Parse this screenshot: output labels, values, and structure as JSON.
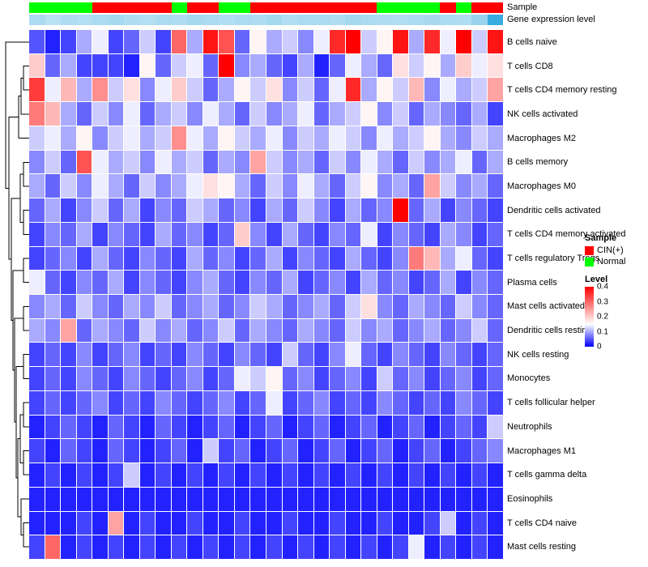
{
  "chart_data": {
    "type": "heatmap",
    "title": "",
    "value_min": 0,
    "value_max": 0.4,
    "colormap": {
      "low": "#0000FF",
      "mid": "#FFFFFF",
      "high": "#FF0000",
      "mid_value": 0.15
    },
    "expression_colormap": {
      "low": "#DFF1FA",
      "high": "#2FA8DD"
    },
    "annotations": {
      "sample_label": "Sample",
      "expression_label": "Gene expression level",
      "sample_values": [
        "Normal",
        "Normal",
        "Normal",
        "Normal",
        "CIN(+)",
        "CIN(+)",
        "CIN(+)",
        "CIN(+)",
        "CIN(+)",
        "Normal",
        "CIN(+)",
        "CIN(+)",
        "Normal",
        "Normal",
        "CIN(+)",
        "CIN(+)",
        "CIN(+)",
        "CIN(+)",
        "CIN(+)",
        "CIN(+)",
        "CIN(+)",
        "CIN(+)",
        "Normal",
        "Normal",
        "Normal",
        "Normal",
        "CIN(+)",
        "Normal",
        "CIN(+)",
        "CIN(+)"
      ],
      "expression_values": [
        0.3,
        0.22,
        0.28,
        0.25,
        0.3,
        0.33,
        0.27,
        0.25,
        0.3,
        0.28,
        0.33,
        0.3,
        0.26,
        0.3,
        0.28,
        0.33,
        0.26,
        0.3,
        0.3,
        0.27,
        0.33,
        0.3,
        0.28,
        0.26,
        0.3,
        0.32,
        0.3,
        0.27,
        0.4,
        0.95
      ]
    },
    "rows": [
      "B cells naive",
      "T cells CD8",
      "T cells CD4 memory resting",
      "NK cells activated",
      "Macrophages M2",
      "B cells memory",
      "Macrophages M0",
      "Dendritic cells activated",
      "T cells CD4 memory activated",
      "T cells regulatory Tregs",
      "Plasma cells",
      "Mast cells activated",
      "Dendritic cells resting",
      "NK cells resting",
      "Monocytes",
      "T cells follicular helper",
      "Neutrophils",
      "Macrophages M1",
      "T cells gamma delta",
      "Eosinophils",
      "T cells CD4 naive",
      "Mast cells resting"
    ],
    "values": [
      [
        0.05,
        0.02,
        0.04,
        0.1,
        0.14,
        0.04,
        0.06,
        0.12,
        0.04,
        0.3,
        0.1,
        0.38,
        0.32,
        0.06,
        0.16,
        0.1,
        0.12,
        0.08,
        0.14,
        0.36,
        0.4,
        0.12,
        0.16,
        0.38,
        0.1,
        0.36,
        0.14,
        0.4,
        0.12,
        0.38
      ],
      [
        0.2,
        0.06,
        0.1,
        0.04,
        0.04,
        0.04,
        0.02,
        0.16,
        0.06,
        0.12,
        0.14,
        0.06,
        0.4,
        0.08,
        0.1,
        0.06,
        0.04,
        0.1,
        0.02,
        0.06,
        0.14,
        0.1,
        0.06,
        0.18,
        0.12,
        0.16,
        0.1,
        0.2,
        0.14,
        0.18
      ],
      [
        0.34,
        0.14,
        0.22,
        0.1,
        0.26,
        0.12,
        0.18,
        0.08,
        0.14,
        0.2,
        0.12,
        0.06,
        0.1,
        0.16,
        0.12,
        0.18,
        0.08,
        0.12,
        0.06,
        0.14,
        0.36,
        0.1,
        0.16,
        0.12,
        0.22,
        0.08,
        0.14,
        0.1,
        0.12,
        0.24
      ],
      [
        0.28,
        0.22,
        0.1,
        0.06,
        0.12,
        0.08,
        0.14,
        0.06,
        0.1,
        0.12,
        0.08,
        0.14,
        0.1,
        0.06,
        0.12,
        0.08,
        0.1,
        0.14,
        0.06,
        0.1,
        0.12,
        0.16,
        0.08,
        0.12,
        0.06,
        0.1,
        0.08,
        0.06,
        0.1,
        0.04
      ],
      [
        0.12,
        0.14,
        0.1,
        0.16,
        0.08,
        0.12,
        0.14,
        0.1,
        0.12,
        0.26,
        0.14,
        0.1,
        0.16,
        0.12,
        0.1,
        0.14,
        0.08,
        0.12,
        0.1,
        0.14,
        0.12,
        0.08,
        0.14,
        0.1,
        0.12,
        0.16,
        0.1,
        0.08,
        0.12,
        0.1
      ],
      [
        0.08,
        0.12,
        0.06,
        0.32,
        0.14,
        0.1,
        0.12,
        0.08,
        0.14,
        0.1,
        0.12,
        0.06,
        0.1,
        0.08,
        0.24,
        0.12,
        0.08,
        0.1,
        0.06,
        0.12,
        0.08,
        0.14,
        0.1,
        0.06,
        0.12,
        0.08,
        0.1,
        0.14,
        0.06,
        0.1
      ],
      [
        0.1,
        0.06,
        0.12,
        0.08,
        0.14,
        0.1,
        0.06,
        0.12,
        0.08,
        0.1,
        0.14,
        0.18,
        0.16,
        0.1,
        0.06,
        0.12,
        0.08,
        0.14,
        0.1,
        0.06,
        0.12,
        0.16,
        0.08,
        0.1,
        0.06,
        0.24,
        0.12,
        0.08,
        0.1,
        0.06
      ],
      [
        0.06,
        0.1,
        0.04,
        0.08,
        0.12,
        0.06,
        0.1,
        0.04,
        0.08,
        0.06,
        0.12,
        0.1,
        0.06,
        0.08,
        0.04,
        0.1,
        0.06,
        0.12,
        0.08,
        0.04,
        0.1,
        0.06,
        0.08,
        0.4,
        0.06,
        0.1,
        0.04,
        0.08,
        0.06,
        0.04
      ],
      [
        0.04,
        0.08,
        0.06,
        0.1,
        0.04,
        0.08,
        0.06,
        0.04,
        0.1,
        0.06,
        0.08,
        0.04,
        0.06,
        0.2,
        0.08,
        0.04,
        0.1,
        0.06,
        0.04,
        0.08,
        0.06,
        0.14,
        0.04,
        0.08,
        0.06,
        0.04,
        0.1,
        0.08,
        0.04,
        0.06
      ],
      [
        0.04,
        0.06,
        0.08,
        0.04,
        0.1,
        0.06,
        0.04,
        0.08,
        0.06,
        0.04,
        0.1,
        0.06,
        0.08,
        0.04,
        0.06,
        0.1,
        0.04,
        0.08,
        0.06,
        0.04,
        0.1,
        0.06,
        0.04,
        0.08,
        0.28,
        0.22,
        0.1,
        0.14,
        0.06,
        0.04
      ],
      [
        0.14,
        0.06,
        0.04,
        0.08,
        0.06,
        0.1,
        0.04,
        0.08,
        0.06,
        0.04,
        0.08,
        0.1,
        0.06,
        0.04,
        0.08,
        0.06,
        0.1,
        0.04,
        0.06,
        0.08,
        0.04,
        0.1,
        0.06,
        0.08,
        0.04,
        0.06,
        0.1,
        0.04,
        0.08,
        0.06
      ],
      [
        0.08,
        0.1,
        0.06,
        0.12,
        0.08,
        0.06,
        0.1,
        0.08,
        0.12,
        0.06,
        0.08,
        0.1,
        0.06,
        0.08,
        0.12,
        0.1,
        0.06,
        0.08,
        0.1,
        0.06,
        0.12,
        0.18,
        0.08,
        0.06,
        0.1,
        0.08,
        0.06,
        0.12,
        0.08,
        0.06
      ],
      [
        0.1,
        0.08,
        0.24,
        0.06,
        0.1,
        0.08,
        0.06,
        0.12,
        0.08,
        0.1,
        0.06,
        0.08,
        0.12,
        0.06,
        0.1,
        0.08,
        0.06,
        0.1,
        0.08,
        0.06,
        0.12,
        0.08,
        0.1,
        0.06,
        0.08,
        0.1,
        0.06,
        0.08,
        0.12,
        0.06
      ],
      [
        0.04,
        0.06,
        0.04,
        0.08,
        0.04,
        0.06,
        0.08,
        0.04,
        0.06,
        0.04,
        0.08,
        0.06,
        0.04,
        0.08,
        0.06,
        0.04,
        0.12,
        0.06,
        0.04,
        0.08,
        0.14,
        0.06,
        0.04,
        0.08,
        0.06,
        0.04,
        0.08,
        0.06,
        0.04,
        0.06
      ],
      [
        0.04,
        0.06,
        0.04,
        0.08,
        0.06,
        0.04,
        0.08,
        0.06,
        0.04,
        0.06,
        0.08,
        0.04,
        0.06,
        0.14,
        0.12,
        0.16,
        0.06,
        0.08,
        0.04,
        0.06,
        0.08,
        0.04,
        0.12,
        0.06,
        0.08,
        0.04,
        0.06,
        0.08,
        0.04,
        0.06
      ],
      [
        0.04,
        0.06,
        0.04,
        0.06,
        0.08,
        0.04,
        0.06,
        0.04,
        0.08,
        0.06,
        0.04,
        0.06,
        0.08,
        0.04,
        0.06,
        0.14,
        0.04,
        0.06,
        0.08,
        0.04,
        0.06,
        0.04,
        0.08,
        0.06,
        0.04,
        0.06,
        0.04,
        0.08,
        0.06,
        0.04
      ],
      [
        0.02,
        0.04,
        0.06,
        0.04,
        0.02,
        0.06,
        0.04,
        0.02,
        0.06,
        0.04,
        0.02,
        0.04,
        0.06,
        0.02,
        0.04,
        0.06,
        0.02,
        0.04,
        0.06,
        0.02,
        0.04,
        0.06,
        0.02,
        0.04,
        0.06,
        0.02,
        0.04,
        0.06,
        0.04,
        0.12
      ],
      [
        0.04,
        0.02,
        0.06,
        0.04,
        0.02,
        0.06,
        0.04,
        0.02,
        0.04,
        0.06,
        0.02,
        0.12,
        0.04,
        0.06,
        0.02,
        0.04,
        0.06,
        0.02,
        0.04,
        0.06,
        0.02,
        0.04,
        0.06,
        0.02,
        0.04,
        0.06,
        0.02,
        0.04,
        0.06,
        0.08
      ],
      [
        0.02,
        0.04,
        0.02,
        0.04,
        0.02,
        0.04,
        0.12,
        0.02,
        0.04,
        0.02,
        0.04,
        0.02,
        0.04,
        0.02,
        0.04,
        0.02,
        0.04,
        0.02,
        0.04,
        0.02,
        0.04,
        0.02,
        0.04,
        0.02,
        0.04,
        0.02,
        0.04,
        0.02,
        0.04,
        0.02
      ],
      [
        0.02,
        0.02,
        0.02,
        0.02,
        0.02,
        0.02,
        0.02,
        0.02,
        0.02,
        0.02,
        0.02,
        0.02,
        0.02,
        0.02,
        0.02,
        0.02,
        0.02,
        0.02,
        0.02,
        0.02,
        0.02,
        0.02,
        0.02,
        0.02,
        0.02,
        0.02,
        0.02,
        0.02,
        0.02,
        0.02
      ],
      [
        0.02,
        0.02,
        0.02,
        0.04,
        0.02,
        0.24,
        0.02,
        0.04,
        0.02,
        0.02,
        0.04,
        0.02,
        0.02,
        0.04,
        0.02,
        0.02,
        0.04,
        0.02,
        0.02,
        0.04,
        0.02,
        0.02,
        0.04,
        0.02,
        0.02,
        0.04,
        0.12,
        0.02,
        0.04,
        0.02
      ],
      [
        0.04,
        0.3,
        0.02,
        0.04,
        0.02,
        0.04,
        0.02,
        0.04,
        0.02,
        0.04,
        0.02,
        0.04,
        0.02,
        0.04,
        0.02,
        0.04,
        0.02,
        0.04,
        0.02,
        0.04,
        0.02,
        0.04,
        0.02,
        0.04,
        0.14,
        0.02,
        0.04,
        0.02,
        0.04,
        0.02
      ]
    ],
    "legend": {
      "sample": {
        "title": "Sample",
        "items": [
          {
            "label": "CIN(+)",
            "color": "#FF0000"
          },
          {
            "label": "Normal",
            "color": "#00FF00"
          }
        ]
      },
      "level": {
        "title": "Level",
        "ticks": [
          "0.4",
          "0.3",
          "0.2",
          "0.1",
          "0"
        ]
      }
    }
  }
}
